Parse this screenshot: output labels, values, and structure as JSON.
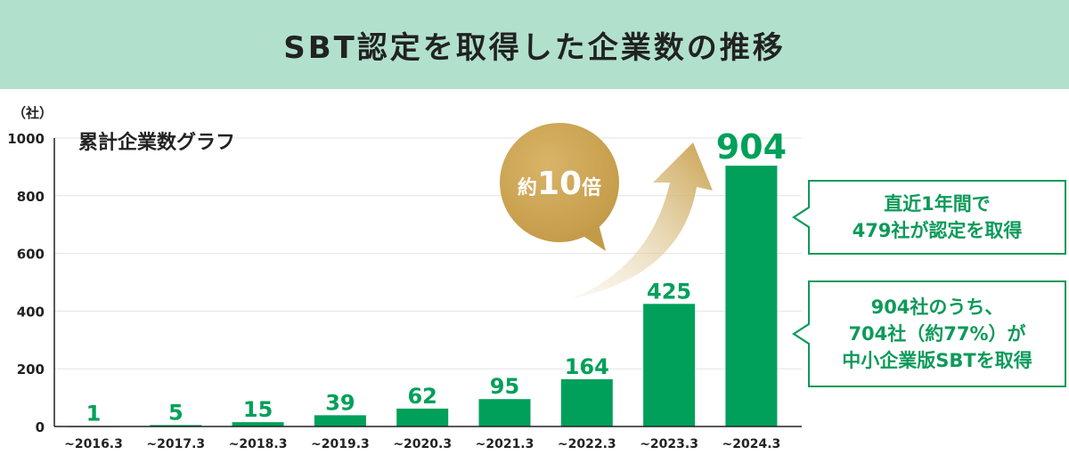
{
  "title": "SBT認定を取得した企業数の推移",
  "chart_data": {
    "type": "bar",
    "title": "累計企業数グラフ",
    "ylabel": "（社）",
    "xlabel": "",
    "ylim": [
      0,
      1000
    ],
    "yticks": [
      0,
      200,
      400,
      600,
      800,
      1000
    ],
    "categories": [
      "~2016.3",
      "~2017.3",
      "~2018.3",
      "~2019.3",
      "~2020.3",
      "~2021.3",
      "~2022.3",
      "~2023.3",
      "~2024.3"
    ],
    "values": [
      1,
      5,
      15,
      39,
      62,
      95,
      164,
      425,
      904
    ],
    "grid": true,
    "color": "#00a05a"
  },
  "badge": {
    "prefix": "約",
    "number": "10",
    "suffix": "倍"
  },
  "callouts": [
    {
      "lines": [
        "直近1年間で",
        "479社が認定を取得"
      ]
    },
    {
      "lines": [
        "904社のうち、",
        "704社（約77%）が",
        "中小企業版SBTを取得"
      ]
    }
  ]
}
